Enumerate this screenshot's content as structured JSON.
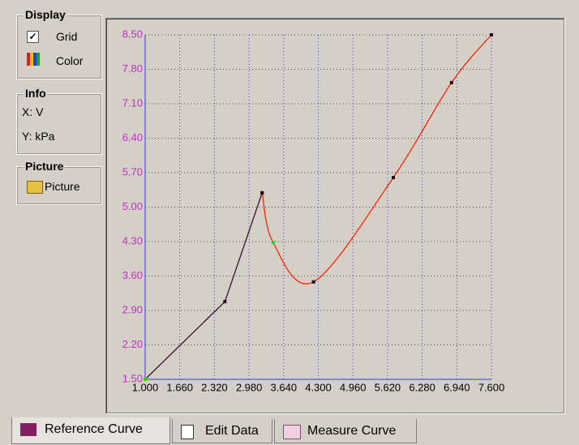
{
  "panel": {
    "display": {
      "title": "Display",
      "grid_label": "Grid",
      "color_label": "Color"
    },
    "info": {
      "title": "Info",
      "x": "X: V",
      "y": "Y: kPa"
    },
    "picture": {
      "title": "Picture",
      "button": "Picture"
    }
  },
  "chart": {
    "type": "line",
    "grid": true,
    "xlim": [
      1.0,
      7.6
    ],
    "ylim": [
      1.5,
      8.5
    ],
    "xticks": [
      {
        "value": 1.0,
        "label": "1.000"
      },
      {
        "value": 1.66,
        "label": "1.660"
      },
      {
        "value": 2.32,
        "label": "2.320"
      },
      {
        "value": 2.98,
        "label": "2.980"
      },
      {
        "value": 3.64,
        "label": "3.640"
      },
      {
        "value": 4.3,
        "label": "4.300"
      },
      {
        "value": 4.96,
        "label": "4.960"
      },
      {
        "value": 5.62,
        "label": "5.620"
      },
      {
        "value": 6.28,
        "label": "6.280"
      },
      {
        "value": 6.94,
        "label": "6.940"
      },
      {
        "value": 7.6,
        "label": "7.600"
      }
    ],
    "yticks": [
      {
        "value": 1.5,
        "label": "1.50"
      },
      {
        "value": 2.2,
        "label": "2.20"
      },
      {
        "value": 2.9,
        "label": "2.90"
      },
      {
        "value": 3.6,
        "label": "3.60"
      },
      {
        "value": 4.3,
        "label": "4.30"
      },
      {
        "value": 5.0,
        "label": "5.00"
      },
      {
        "value": 5.7,
        "label": "5.70"
      },
      {
        "value": 6.4,
        "label": "6.40"
      },
      {
        "value": 7.1,
        "label": "7.10"
      },
      {
        "value": 7.8,
        "label": "7.80"
      },
      {
        "value": 8.5,
        "label": "8.50"
      }
    ],
    "series": [
      {
        "color": "#3a1030",
        "smooth": false,
        "x": [
          1.0,
          2.52,
          3.23
        ],
        "y": [
          1.5,
          3.08,
          5.29
        ],
        "marker_colors": [
          "#30d030",
          "#200010",
          "#200010"
        ]
      },
      {
        "color": "#ff2000",
        "smooth": true,
        "x": [
          3.23,
          3.44,
          4.21,
          5.73,
          6.84,
          7.6
        ],
        "y": [
          5.29,
          4.28,
          3.48,
          5.6,
          7.53,
          8.5
        ],
        "marker_colors": [
          "#200010",
          "#30d030",
          "#200010",
          "#200010",
          "#200010",
          "#200010"
        ]
      }
    ]
  },
  "tabs": [
    "Reference Curve",
    "Edit Data",
    "Measure Curve"
  ]
}
